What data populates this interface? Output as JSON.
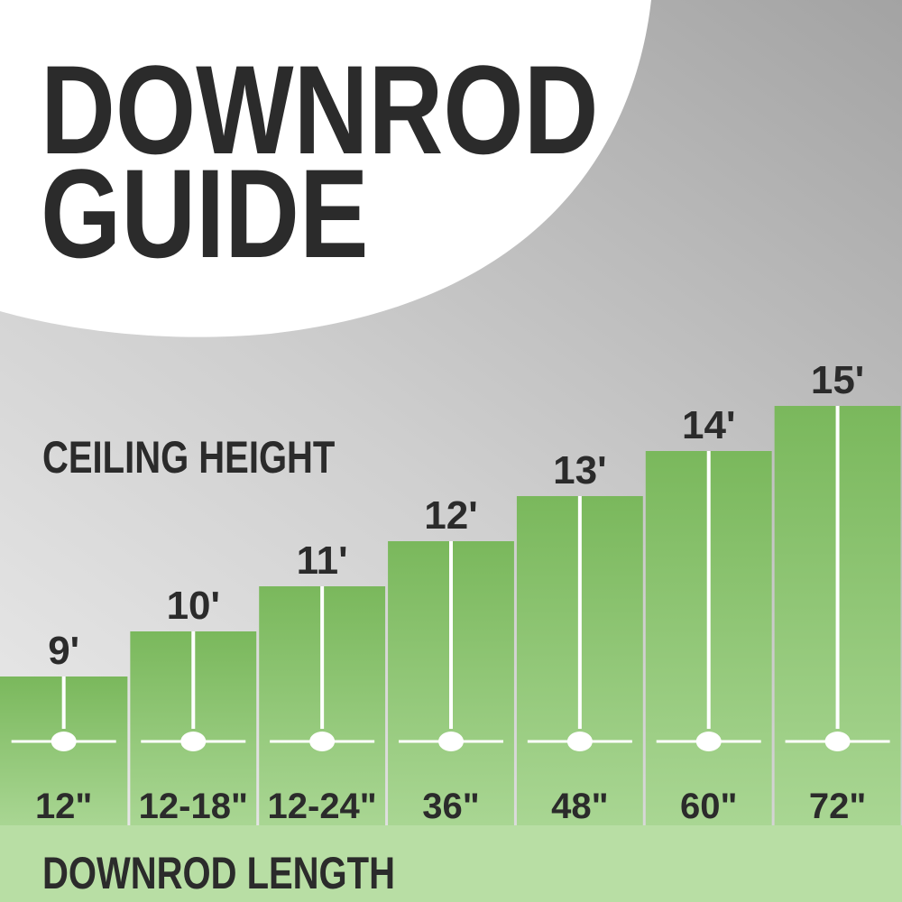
{
  "title": {
    "line1": "DOWNROD",
    "line2": "GUIDE"
  },
  "colors": {
    "bar_top": "#7ab85c",
    "bar_bottom": "#a9d693",
    "footer": "#b8dea4",
    "text": "#2b2b2b",
    "fan": "#ffffff"
  },
  "chart_data": {
    "type": "bar",
    "ylabel": "CEILING HEIGHT",
    "xlabel": "DOWNROD LENGTH",
    "categories": [
      "12\"",
      "12-18\"",
      "12-24\"",
      "36\"",
      "48\"",
      "60\"",
      "72\""
    ],
    "value_labels": [
      "9'",
      "10'",
      "11'",
      "12'",
      "13'",
      "14'",
      "15'"
    ],
    "values": [
      9,
      10,
      11,
      12,
      13,
      14,
      15
    ],
    "ylim": [
      0,
      15
    ],
    "grid": false,
    "icon": "ceiling-fan-icon"
  }
}
